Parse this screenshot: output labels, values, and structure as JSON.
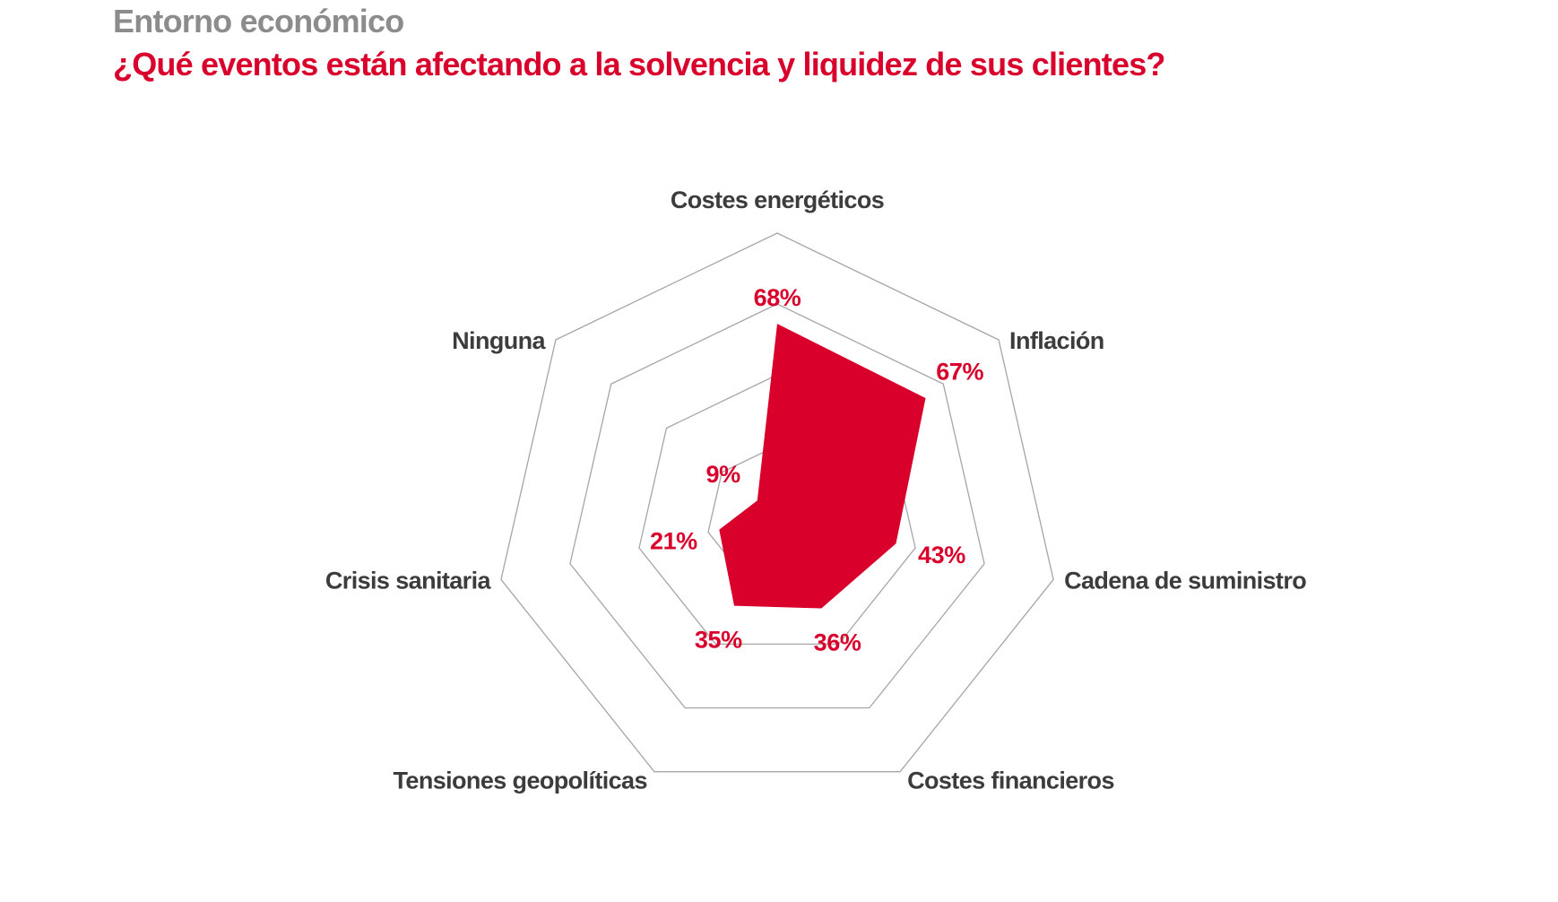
{
  "header": {
    "kicker": "Entorno económico",
    "title": "¿Qué eventos están afectando a la solvencia y liquidez de sus clientes?"
  },
  "colors": {
    "accent": "#d9002b",
    "kicker": "#8c8c8c",
    "label": "#3c3c3c",
    "grid": "#a6a6a6"
  },
  "chart_data": {
    "type": "radar",
    "title": "¿Qué eventos están afectando a la solvencia y liquidez de sus clientes?",
    "categories": [
      "Costes energéticos",
      "Inflación",
      "Cadena de suministro",
      "Costes financieros",
      "Tensiones geopolíticas",
      "Crisis sanitaria",
      "Ninguna"
    ],
    "values": [
      68,
      67,
      43,
      36,
      35,
      21,
      9
    ],
    "value_labels": [
      "68%",
      "67%",
      "43%",
      "36%",
      "35%",
      "21%",
      "9%"
    ],
    "unit": "%",
    "range": [
      0,
      100
    ],
    "grid_levels": [
      25,
      50,
      75,
      100
    ],
    "grid": true,
    "legend": "none"
  }
}
